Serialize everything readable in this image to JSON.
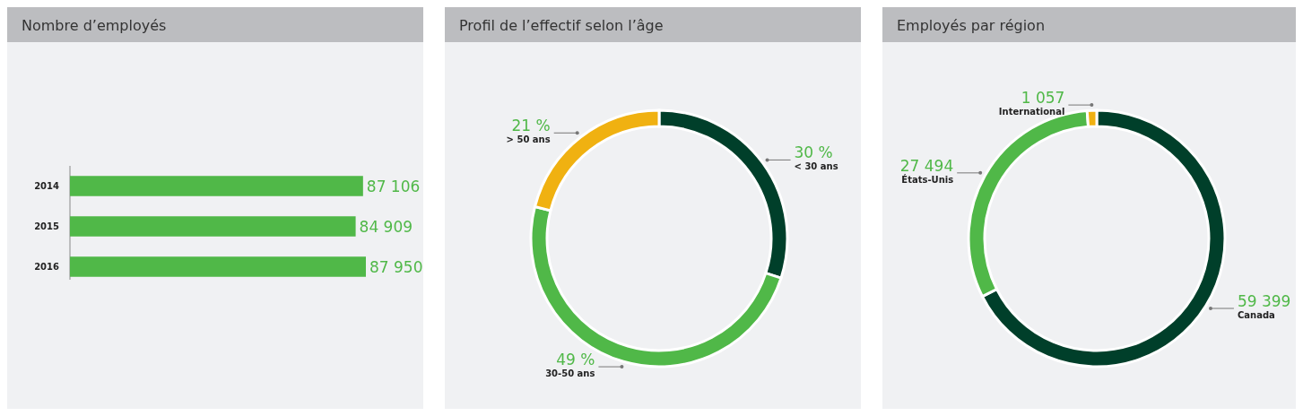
{
  "chart_data": [
    {
      "type": "bar",
      "title": "Nombre d’employés",
      "orientation": "horizontal",
      "categories": [
        "2014",
        "2015",
        "2016"
      ],
      "values": [
        87106,
        84909,
        87950
      ],
      "color": "#50b848",
      "data_labels": true,
      "value_labels": [
        "87 106",
        "84 909",
        "87 950"
      ]
    },
    {
      "type": "donut",
      "title": "Profil de l’effectif selon l’âge",
      "categories": [
        "< 30 ans",
        "30-50 ans",
        "> 50 ans"
      ],
      "values": [
        30,
        49,
        21
      ],
      "colors": [
        "#003f2a",
        "#50b848",
        "#f0b111"
      ],
      "value_labels": [
        "30 %",
        "49 %",
        "21 %"
      ]
    },
    {
      "type": "donut",
      "title": "Employés par région",
      "categories": [
        "Canada",
        "États-Unis",
        "International"
      ],
      "values": [
        59399,
        27494,
        1057
      ],
      "colors": [
        "#003f2a",
        "#50b848",
        "#f0b111"
      ],
      "value_labels": [
        "59 399",
        "27 494",
        "1 057"
      ]
    }
  ]
}
